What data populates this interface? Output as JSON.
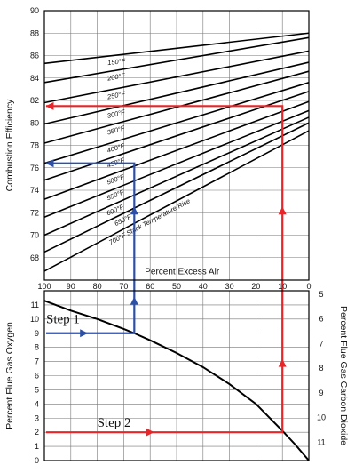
{
  "chart_data": [
    {
      "type": "line",
      "panel": "top",
      "ylabel": "Combustion Efficiency",
      "xlabel": "Percent Excess Air",
      "xlim": [
        100,
        0
      ],
      "ylim": [
        66,
        90
      ],
      "x_ticks": [
        "100",
        "90",
        "80",
        "70",
        "60",
        "50",
        "40",
        "30",
        "20",
        "10",
        "0"
      ],
      "y_ticks": [
        "68",
        "70",
        "72",
        "74",
        "76",
        "78",
        "80",
        "82",
        "84",
        "86",
        "88",
        "90"
      ],
      "grid": true,
      "series": [
        {
          "name": "150°F",
          "x": [
            100,
            0
          ],
          "y": [
            85.3,
            88.0
          ]
        },
        {
          "name": "200°F",
          "x": [
            100,
            0
          ],
          "y": [
            83.6,
            87.6
          ]
        },
        {
          "name": "250°F",
          "x": [
            100,
            0
          ],
          "y": [
            81.8,
            86.4
          ]
        },
        {
          "name": "300°F",
          "x": [
            100,
            0
          ],
          "y": [
            79.9,
            85.4
          ]
        },
        {
          "name": "350°F",
          "x": [
            100,
            0
          ],
          "y": [
            78.2,
            84.6
          ]
        },
        {
          "name": "400°F",
          "x": [
            100,
            0
          ],
          "y": [
            76.4,
            83.6
          ]
        },
        {
          "name": "450°F",
          "x": [
            100,
            0
          ],
          "y": [
            74.9,
            82.8
          ]
        },
        {
          "name": "500°F",
          "x": [
            100,
            0
          ],
          "y": [
            73.2,
            81.9
          ]
        },
        {
          "name": "550°F",
          "x": [
            100,
            0
          ],
          "y": [
            71.6,
            81.1
          ]
        },
        {
          "name": "600°F",
          "x": [
            100,
            0
          ],
          "y": [
            70.0,
            80.5
          ]
        },
        {
          "name": "650°F",
          "x": [
            100,
            0
          ],
          "y": [
            68.5,
            80.0
          ]
        },
        {
          "name": "700°F Stack Temperature Rise",
          "x": [
            100,
            0
          ],
          "y": [
            66.8,
            79.3
          ]
        }
      ],
      "annotations": {
        "red_path": {
          "x": [
            10,
            10,
            100
          ],
          "y": [
            66,
            81.5,
            81.5
          ]
        },
        "blue_path": {
          "x": [
            66,
            66,
            100
          ],
          "y": [
            66,
            76.4,
            76.4
          ]
        }
      }
    },
    {
      "type": "line",
      "panel": "bottom",
      "ylabel": "Percent Flue Gas Oxygen",
      "y2label": "Percent Flue Gas Carbon Dioxide",
      "xlim": [
        100,
        0
      ],
      "ylim": [
        0,
        12
      ],
      "y_ticks": [
        "0",
        "1",
        "2",
        "3",
        "4",
        "5",
        "6",
        "7",
        "8",
        "9",
        "10",
        "11"
      ],
      "y2_ticks": [
        "5",
        "6",
        "7",
        "8",
        "9",
        "10",
        "11"
      ],
      "grid": true,
      "series": [
        {
          "x": [
            100,
            90,
            80,
            70,
            66,
            60,
            50,
            40,
            30,
            20,
            10,
            5,
            0
          ],
          "y": [
            11.3,
            10.6,
            10.0,
            9.3,
            9.0,
            8.5,
            7.6,
            6.6,
            5.4,
            4.0,
            2.1,
            1.1,
            0.0
          ]
        }
      ],
      "annotations": {
        "step1": {
          "label": "Step 1",
          "o2_value": 9,
          "x": 66
        },
        "step2": {
          "label": "Step 2",
          "o2_value": 2,
          "x": 10
        }
      }
    }
  ],
  "colors": {
    "red": "#e8262a",
    "blue": "#2d4fa6",
    "curve": "#000000",
    "grid": "#777777"
  },
  "mid_xlabel": "Percent Excess Air"
}
